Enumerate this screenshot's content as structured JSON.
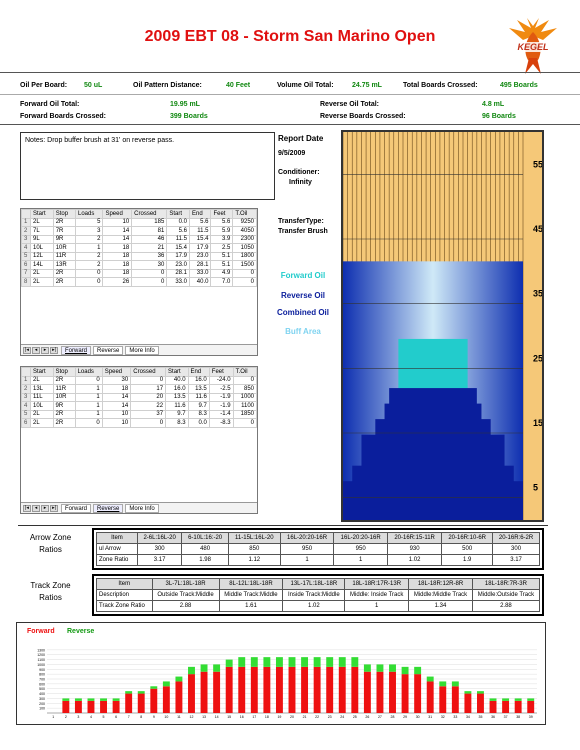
{
  "header": {
    "title": "2009 EBT 08 - Storm San Marino Open",
    "logo_text": "KEGEL"
  },
  "summary": {
    "oil_per_board_label": "Oil Per Board:",
    "oil_per_board_value": "50 uL",
    "oil_pattern_distance_label": "Oil Pattern Distance:",
    "oil_pattern_distance_value": "40 Feet",
    "volume_oil_total_label": "Volume Oil Total:",
    "volume_oil_total_value": "24.75 mL",
    "total_boards_crossed_label": "Total Boards Crossed:",
    "total_boards_crossed_value": "495 Boards",
    "forward_oil_total_label": "Forward Oil Total:",
    "forward_oil_total_value": "19.95 mL",
    "reverse_oil_total_label": "Reverse Oil Total:",
    "reverse_oil_total_value": "4.8 mL",
    "forward_boards_crossed_label": "Forward Boards Crossed:",
    "forward_boards_crossed_value": "399 Boards",
    "reverse_boards_crossed_label": "Reverse Boards Crossed:",
    "reverse_boards_crossed_value": "96 Boards"
  },
  "notes": "Notes: Drop buffer brush at 31' on reverse pass.",
  "report": {
    "date_label": "Report Date",
    "date_value": "9/5/2009",
    "conditioner_label": "Conditioner:",
    "conditioner_value": "Infinity",
    "transfer_label": "TransferType:",
    "transfer_value": "Transfer Brush"
  },
  "legend": {
    "forward": "Forward Oil",
    "reverse": "Reverse Oil",
    "combined": "Combined Oil",
    "buff": "Buff Area"
  },
  "colors": {
    "title": "#e01010",
    "value_green": "#118811",
    "forward_oil": "#22cccc",
    "reverse_oil": "#0a1e9c",
    "combined_oil": "#0a1e9c",
    "buff_area": "#7fd3f0",
    "lane_wood": "#f5c878",
    "bar_red": "#ee1111",
    "bar_green": "#33dd33"
  },
  "forward_table": {
    "headers": [
      "",
      "Start",
      "Stop",
      "Loads",
      "Speed",
      "Crossed",
      "Start",
      "End",
      "Feet",
      "T.Oil"
    ],
    "rows": [
      [
        "1",
        "2L",
        "2R",
        "5",
        "10",
        "185",
        "0.0",
        "5.6",
        "5.6",
        "9250"
      ],
      [
        "2",
        "7L",
        "7R",
        "3",
        "14",
        "81",
        "5.6",
        "11.5",
        "5.9",
        "4050"
      ],
      [
        "3",
        "9L",
        "9R",
        "2",
        "14",
        "46",
        "11.5",
        "15.4",
        "3.9",
        "2300"
      ],
      [
        "4",
        "10L",
        "10R",
        "1",
        "18",
        "21",
        "15.4",
        "17.9",
        "2.5",
        "1050"
      ],
      [
        "5",
        "12L",
        "11R",
        "2",
        "18",
        "36",
        "17.9",
        "23.0",
        "5.1",
        "1800"
      ],
      [
        "6",
        "14L",
        "13R",
        "2",
        "18",
        "30",
        "23.0",
        "28.1",
        "5.1",
        "1500"
      ],
      [
        "7",
        "2L",
        "2R",
        "0",
        "18",
        "0",
        "28.1",
        "33.0",
        "4.9",
        "0"
      ],
      [
        "8",
        "2L",
        "2R",
        "0",
        "26",
        "0",
        "33.0",
        "40.0",
        "7.0",
        "0"
      ]
    ],
    "tabs": [
      "Forward",
      "Reverse",
      "More Info"
    ],
    "active_tab": "Forward"
  },
  "reverse_table": {
    "headers": [
      "",
      "Start",
      "Stop",
      "Loads",
      "Speed",
      "Crossed",
      "Start",
      "End",
      "Feet",
      "T.Oil"
    ],
    "rows": [
      [
        "1",
        "2L",
        "2R",
        "0",
        "30",
        "0",
        "40.0",
        "16.0",
        "-24.0",
        "0"
      ],
      [
        "2",
        "13L",
        "11R",
        "1",
        "18",
        "17",
        "16.0",
        "13.5",
        "-2.5",
        "850"
      ],
      [
        "3",
        "11L",
        "10R",
        "1",
        "14",
        "20",
        "13.5",
        "11.6",
        "-1.9",
        "1000"
      ],
      [
        "4",
        "10L",
        "9R",
        "1",
        "14",
        "22",
        "11.6",
        "9.7",
        "-1.9",
        "1100"
      ],
      [
        "5",
        "2L",
        "2R",
        "1",
        "10",
        "37",
        "9.7",
        "8.3",
        "-1.4",
        "1850"
      ],
      [
        "6",
        "2L",
        "2R",
        "0",
        "10",
        "0",
        "8.3",
        "0.0",
        "-8.3",
        "0"
      ]
    ],
    "tabs": [
      "Forward",
      "Reverse",
      "More Info"
    ],
    "active_tab": "Reverse"
  },
  "arrow_zone": {
    "title_line1": "Arrow Zone",
    "title_line2": "Ratios",
    "headers": [
      "Item",
      "2-6L:16L-20",
      "6-10L:16:-20",
      "11-15L:16L-20",
      "16L-20:20-16R",
      "16L-20:20-16R",
      "20-16R:15-11R",
      "20-16R:10-6R",
      "20-16R:6-2R"
    ],
    "rows": [
      [
        "ul Arrow",
        "300",
        "480",
        "850",
        "950",
        "950",
        "930",
        "500",
        "300"
      ],
      [
        "Zone Ratio",
        "3.17",
        "1.98",
        "1.12",
        "1",
        "1",
        "1.02",
        "1.9",
        "3.17"
      ]
    ]
  },
  "track_zone": {
    "title_line1": "Track Zone",
    "title_line2": "Ratios",
    "headers": [
      "Item",
      "3L-7L:18L-18R",
      "8L-12L:18L-18R",
      "13L-17L:18L-18R",
      "18L-18R:17R-13R",
      "18L-18R:12R-8R",
      "18L-18R:7R-3R"
    ],
    "rows": [
      [
        "Description",
        "Outside Track:Middle",
        "Middle Track:Middle",
        "Inside Track:Middle",
        "Middle: Inside Track",
        "Middle:Middle Track",
        "Middle:Outside Track"
      ],
      [
        "Track Zone Ratio",
        "2.88",
        "1.61",
        "1.02",
        "1",
        "1.34",
        "2.88"
      ]
    ]
  },
  "pattern_scale": [
    "55",
    "45",
    "35",
    "25",
    "15",
    "5"
  ],
  "chart_data": {
    "type": "bar",
    "stacked": true,
    "title": "",
    "legend": [
      "Forward",
      "Reverse"
    ],
    "legend_position": "top-left",
    "ylim": [
      0,
      1400
    ],
    "y_ticks": [
      "100",
      "200",
      "300",
      "400",
      "500",
      "600",
      "700",
      "800",
      "900",
      "1000",
      "1100",
      "1200",
      "1300"
    ],
    "categories": [
      "1",
      "2",
      "3",
      "4",
      "5",
      "6",
      "7",
      "8",
      "9",
      "10",
      "11",
      "12",
      "13",
      "14",
      "15",
      "16",
      "17",
      "18",
      "19",
      "20",
      "21",
      "22",
      "23",
      "24",
      "25",
      "26",
      "27",
      "28",
      "29",
      "30",
      "31",
      "32",
      "33",
      "34",
      "35",
      "36",
      "37",
      "38",
      "39"
    ],
    "series": [
      {
        "name": "Forward",
        "values": [
          0,
          250,
          250,
          250,
          250,
          250,
          400,
          400,
          500,
          550,
          650,
          800,
          850,
          850,
          950,
          950,
          950,
          950,
          950,
          950,
          950,
          950,
          950,
          950,
          950,
          850,
          850,
          850,
          800,
          800,
          650,
          550,
          550,
          400,
          400,
          250,
          250,
          250,
          250
        ]
      },
      {
        "name": "Reverse",
        "values": [
          0,
          50,
          50,
          50,
          50,
          50,
          50,
          50,
          50,
          100,
          100,
          150,
          150,
          150,
          150,
          200,
          200,
          200,
          200,
          200,
          200,
          200,
          200,
          200,
          200,
          150,
          150,
          150,
          150,
          150,
          100,
          100,
          100,
          50,
          50,
          50,
          50,
          50,
          50
        ]
      }
    ]
  }
}
